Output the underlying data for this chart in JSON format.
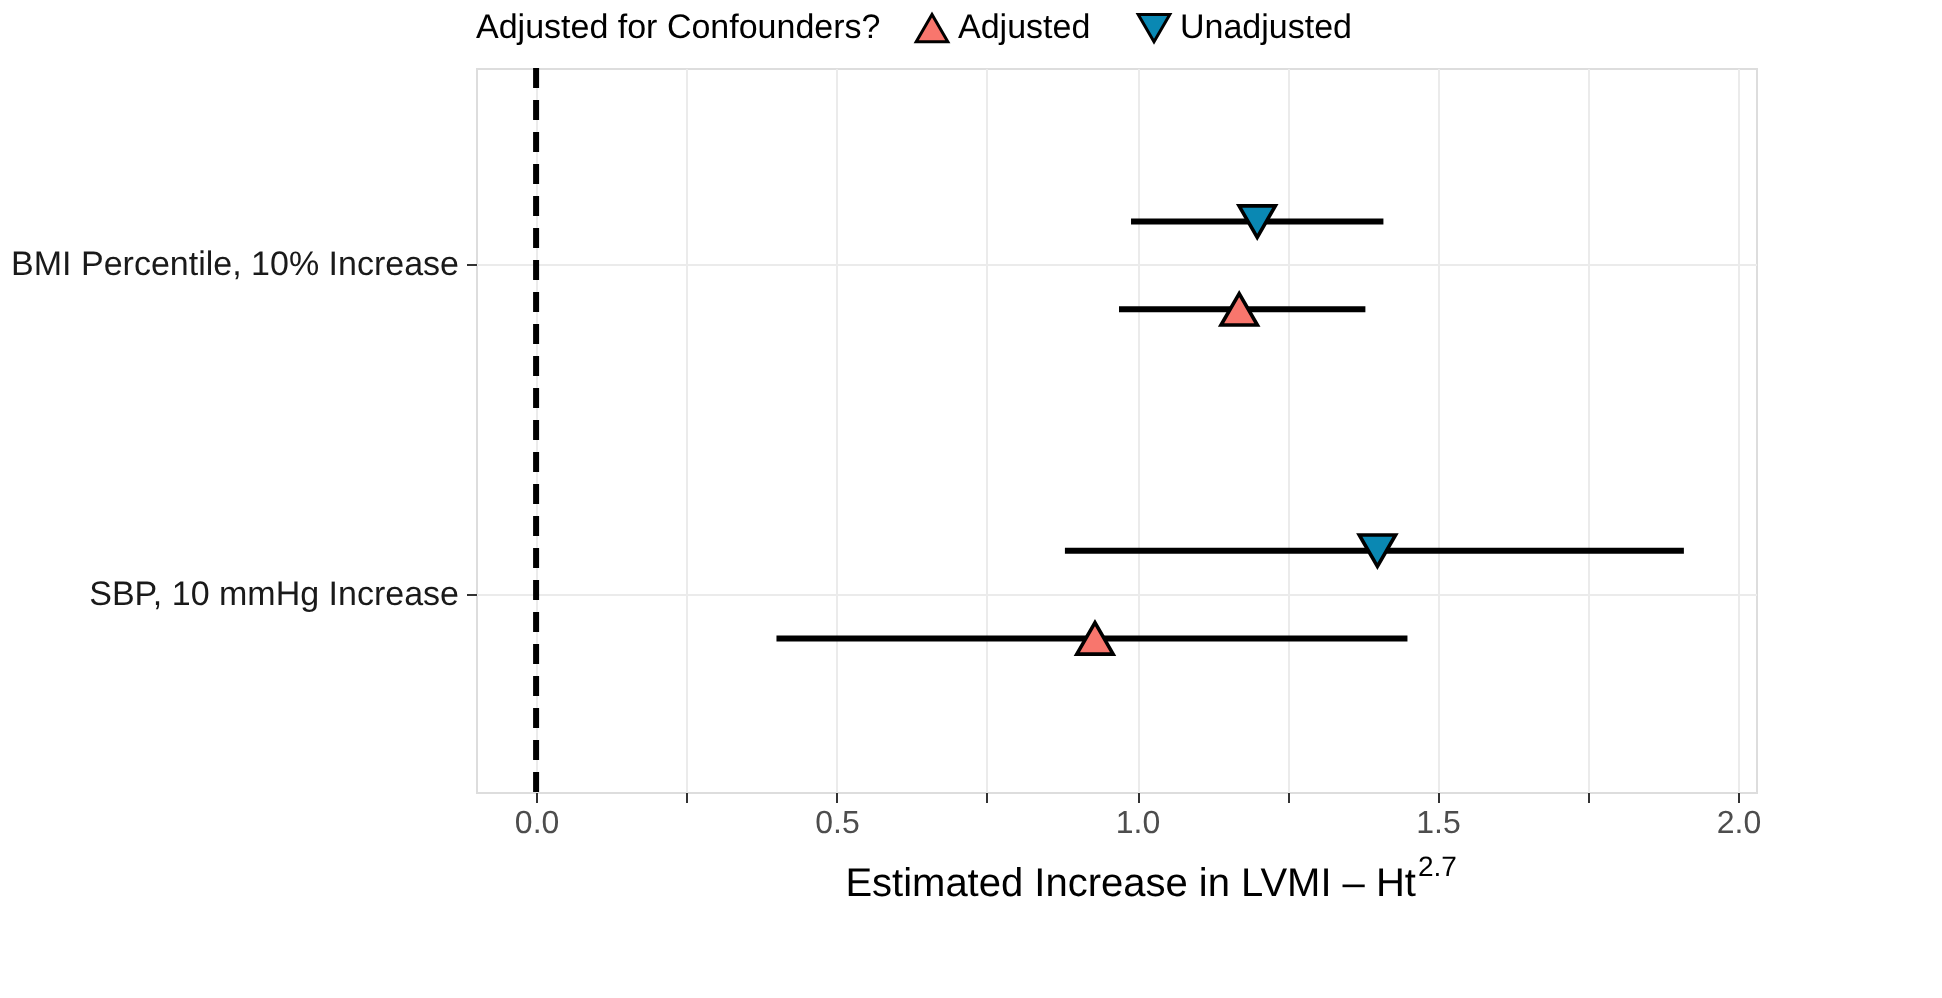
{
  "chart_data": {
    "type": "scatter",
    "orientation": "horizontal",
    "xlabel": "Estimated Increase in LVMI – Ht$^{2.7}$",
    "legend_title": "Adjusted for Confounders?",
    "legend": "top",
    "categories": [
      "BMI Percentile, 10% Increase",
      "SBP, 10 mmHg Increase"
    ],
    "series": [
      {
        "name": "Adjusted",
        "color": "#f8766d",
        "marker": "triangle",
        "values": [
          1.17,
          0.93
        ],
        "errors": [
          [
            0.97,
            1.38
          ],
          [
            0.4,
            1.45
          ]
        ]
      },
      {
        "name": "Unadjusted",
        "color": "#0a88b3",
        "marker": "triangle-down",
        "values": [
          1.2,
          1.4
        ],
        "errors": [
          [
            0.99,
            1.41
          ],
          [
            0.88,
            1.91
          ]
        ]
      }
    ],
    "xlim": [
      -0.1,
      2.03
    ],
    "xticks": [
      {
        "value": 0,
        "label": "0.0"
      },
      {
        "value": 0.25,
        "label": null
      },
      {
        "value": 0.5,
        "label": "0.5"
      },
      {
        "value": 0.75,
        "label": null
      },
      {
        "value": 1,
        "label": "1.0"
      },
      {
        "value": 1.25,
        "label": null
      },
      {
        "value": 1.5,
        "label": "1.5"
      },
      {
        "value": 1.75,
        "label": null
      },
      {
        "value": 2,
        "label": "2.0"
      }
    ],
    "grid": true,
    "ref_lines": [
      {
        "axis": "x",
        "value": 0,
        "line_style": "dashed",
        "color": "#000000"
      }
    ]
  }
}
